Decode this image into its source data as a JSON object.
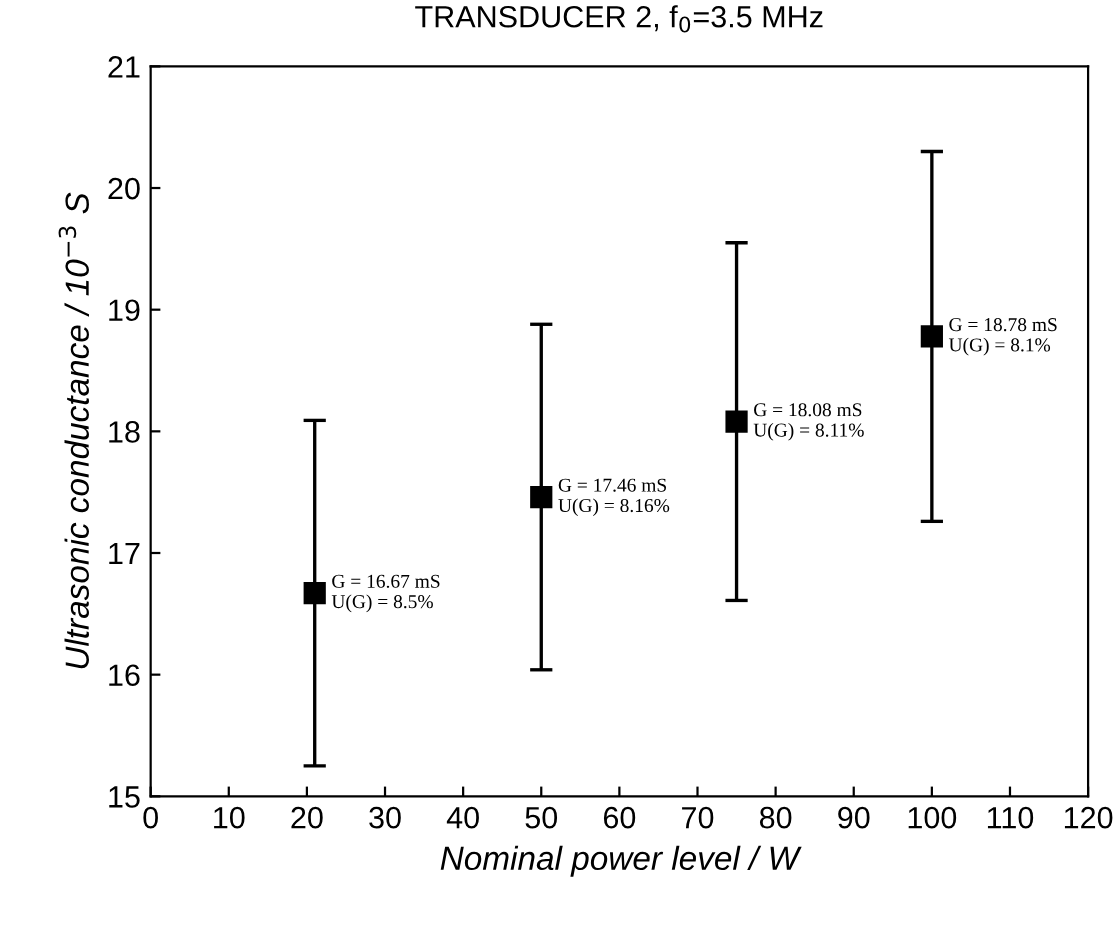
{
  "chart_data": {
    "type": "scatter",
    "title": "TRANSDUCER 2, f$_{0}$=3.5 MHz",
    "xlabel": "Nominal power level / W",
    "ylabel": "Ultrasonic conductance / 10$^{−3}$ S",
    "x": [
      21,
      50,
      75,
      100
    ],
    "values": [
      16.67,
      17.46,
      18.08,
      18.78
    ],
    "errors": [
      1.42,
      1.42,
      1.47,
      1.52
    ],
    "color": "#000000",
    "marker": "square",
    "xlim": [
      0,
      120
    ],
    "xticks": [
      0,
      10,
      20,
      30,
      40,
      50,
      60,
      70,
      80,
      90,
      100,
      110,
      120
    ],
    "ylim": [
      15,
      21
    ],
    "yticks": [
      15,
      16,
      17,
      18,
      19,
      20,
      21
    ],
    "grid": false,
    "legend": false,
    "annotations": [
      {
        "text": "G = 16.67 mS\nU(G) = 8.5%",
        "x": 21,
        "y": 16.67
      },
      {
        "text": "G = 17.46 mS\nU(G) = 8.16%",
        "x": 50,
        "y": 17.46
      },
      {
        "text": "G = 18.08 mS\nU(G) = 8.11%",
        "x": 75,
        "y": 18.08
      },
      {
        "text": "G = 18.78 mS\nU(G) = 8.1%",
        "x": 100,
        "y": 18.78
      }
    ]
  }
}
